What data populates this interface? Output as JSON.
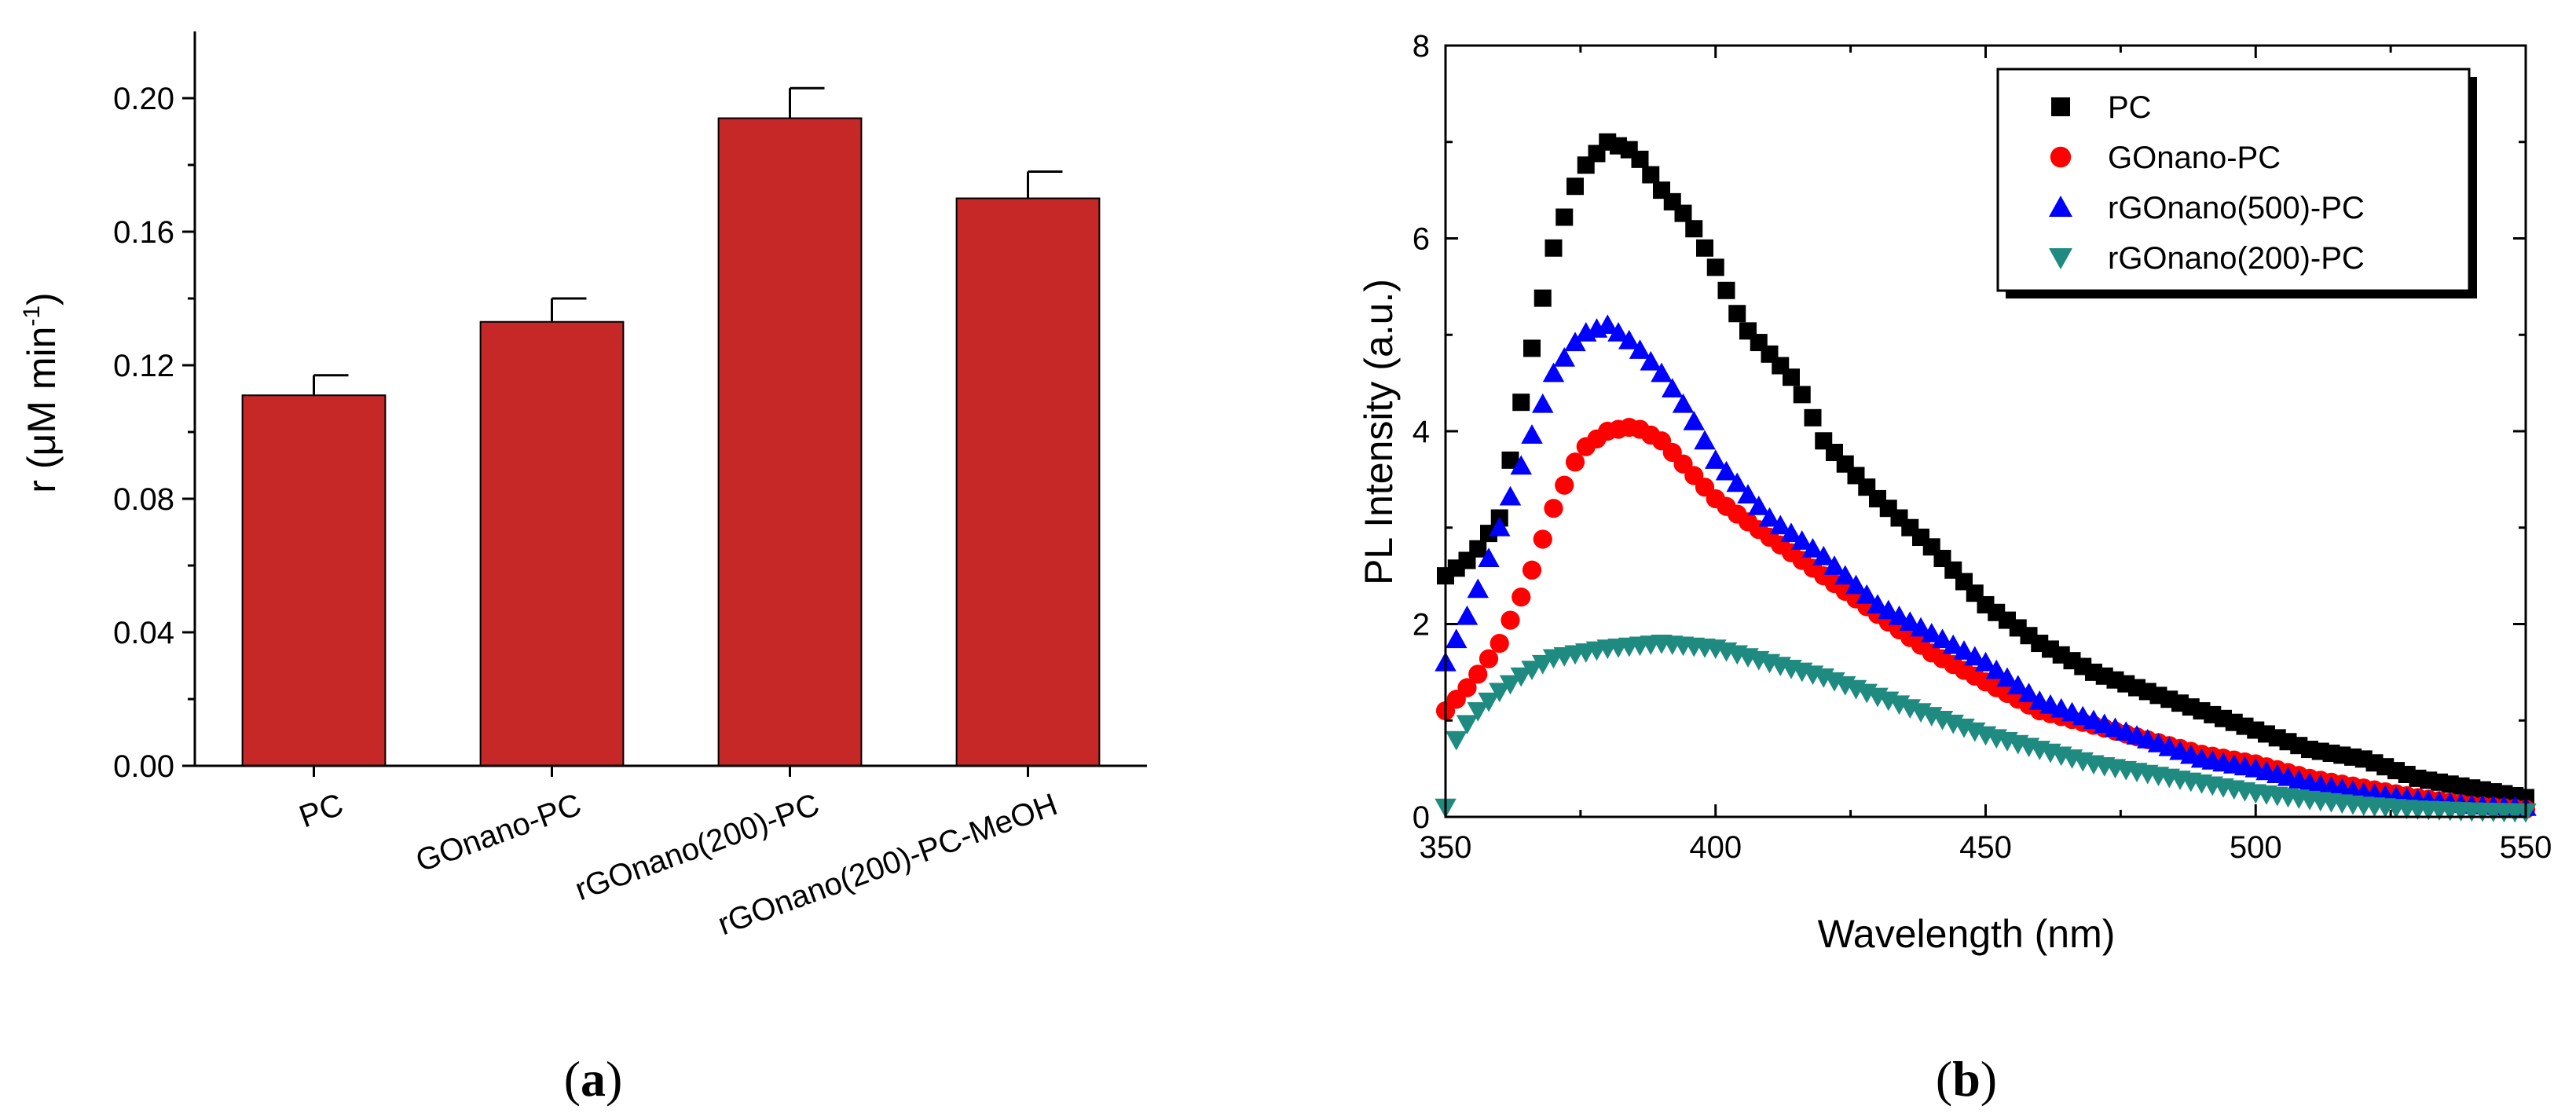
{
  "chart_data": [
    {
      "type": "bar",
      "panel_label": "a",
      "categories": [
        "PC",
        "GOnano-PC",
        "rGOnano(200)-PC",
        "rGOnano(200)-PC-MeOH"
      ],
      "values": [
        0.111,
        0.133,
        0.194,
        0.17
      ],
      "errors": [
        0.006,
        0.007,
        0.009,
        0.008
      ],
      "ylabel_prefix": "r (μM min",
      "ylabel_sup": "-1",
      "ylabel_suffix": ")",
      "xlabel": "",
      "ylim": [
        0.0,
        0.22
      ],
      "yticks": [
        0.0,
        0.04,
        0.08,
        0.12,
        0.16,
        0.2
      ],
      "ytick_labels": [
        "0.00",
        "0.04",
        "0.08",
        "0.12",
        "0.16",
        "0.20"
      ],
      "bar_color": "#c62828"
    },
    {
      "type": "scatter",
      "panel_label": "b",
      "xlabel": "Wavelength (nm)",
      "ylabel": "PL Intensity (a.u.)",
      "xlim": [
        350,
        550
      ],
      "ylim": [
        0,
        8
      ],
      "xticks": [
        350,
        400,
        450,
        500,
        550
      ],
      "yticks": [
        0,
        2,
        4,
        6,
        8
      ],
      "legend_position": "top-right",
      "series": [
        {
          "name": "PC",
          "color": "#000000",
          "marker": "square",
          "anchors": [
            [
              350,
              2.5
            ],
            [
              355,
              2.7
            ],
            [
              360,
              3.1
            ],
            [
              365,
              4.6
            ],
            [
              370,
              5.9
            ],
            [
              375,
              6.7
            ],
            [
              380,
              7.0
            ],
            [
              385,
              6.9
            ],
            [
              390,
              6.5
            ],
            [
              395,
              6.2
            ],
            [
              400,
              5.7
            ],
            [
              405,
              5.1
            ],
            [
              410,
              4.8
            ],
            [
              415,
              4.5
            ],
            [
              420,
              3.9
            ],
            [
              425,
              3.6
            ],
            [
              430,
              3.3
            ],
            [
              440,
              2.8
            ],
            [
              450,
              2.2
            ],
            [
              460,
              1.8
            ],
            [
              470,
              1.5
            ],
            [
              480,
              1.3
            ],
            [
              490,
              1.1
            ],
            [
              500,
              0.9
            ],
            [
              510,
              0.7
            ],
            [
              520,
              0.6
            ],
            [
              530,
              0.4
            ],
            [
              540,
              0.3
            ],
            [
              550,
              0.2
            ]
          ]
        },
        {
          "name": "GOnano-PC",
          "color": "#ff0000",
          "marker": "circle",
          "anchors": [
            [
              350,
              1.1
            ],
            [
              355,
              1.4
            ],
            [
              360,
              1.8
            ],
            [
              365,
              2.4
            ],
            [
              370,
              3.2
            ],
            [
              375,
              3.8
            ],
            [
              380,
              4.0
            ],
            [
              385,
              4.05
            ],
            [
              390,
              3.9
            ],
            [
              395,
              3.6
            ],
            [
              400,
              3.3
            ],
            [
              410,
              2.9
            ],
            [
              420,
              2.5
            ],
            [
              430,
              2.1
            ],
            [
              440,
              1.7
            ],
            [
              450,
              1.4
            ],
            [
              460,
              1.1
            ],
            [
              470,
              0.95
            ],
            [
              480,
              0.8
            ],
            [
              490,
              0.65
            ],
            [
              500,
              0.55
            ],
            [
              510,
              0.4
            ],
            [
              520,
              0.3
            ],
            [
              530,
              0.2
            ],
            [
              540,
              0.12
            ],
            [
              550,
              0.08
            ]
          ]
        },
        {
          "name": "rGOnano(500)-PC",
          "color": "#0000ff",
          "marker": "triangle-up",
          "anchors": [
            [
              350,
              1.6
            ],
            [
              355,
              2.2
            ],
            [
              360,
              3.0
            ],
            [
              365,
              3.8
            ],
            [
              370,
              4.6
            ],
            [
              375,
              5.0
            ],
            [
              380,
              5.1
            ],
            [
              385,
              4.9
            ],
            [
              390,
              4.6
            ],
            [
              395,
              4.2
            ],
            [
              400,
              3.7
            ],
            [
              410,
              3.1
            ],
            [
              420,
              2.7
            ],
            [
              430,
              2.2
            ],
            [
              440,
              1.9
            ],
            [
              450,
              1.6
            ],
            [
              460,
              1.2
            ],
            [
              470,
              1.0
            ],
            [
              480,
              0.8
            ],
            [
              490,
              0.6
            ],
            [
              500,
              0.5
            ],
            [
              510,
              0.35
            ],
            [
              520,
              0.25
            ],
            [
              530,
              0.18
            ],
            [
              540,
              0.12
            ],
            [
              550,
              0.1
            ]
          ]
        },
        {
          "name": "rGOnano(200)-PC",
          "color": "#1f8a80",
          "marker": "triangle-down",
          "anchors": [
            [
              350,
              0.1
            ],
            [
              352,
              0.8
            ],
            [
              355,
              1.05
            ],
            [
              360,
              1.3
            ],
            [
              365,
              1.5
            ],
            [
              370,
              1.65
            ],
            [
              380,
              1.75
            ],
            [
              390,
              1.8
            ],
            [
              400,
              1.75
            ],
            [
              410,
              1.6
            ],
            [
              420,
              1.45
            ],
            [
              430,
              1.25
            ],
            [
              440,
              1.05
            ],
            [
              450,
              0.85
            ],
            [
              460,
              0.7
            ],
            [
              470,
              0.55
            ],
            [
              480,
              0.45
            ],
            [
              490,
              0.35
            ],
            [
              500,
              0.25
            ],
            [
              510,
              0.18
            ],
            [
              520,
              0.12
            ],
            [
              530,
              0.08
            ],
            [
              540,
              0.06
            ],
            [
              550,
              0.05
            ]
          ]
        }
      ]
    }
  ]
}
